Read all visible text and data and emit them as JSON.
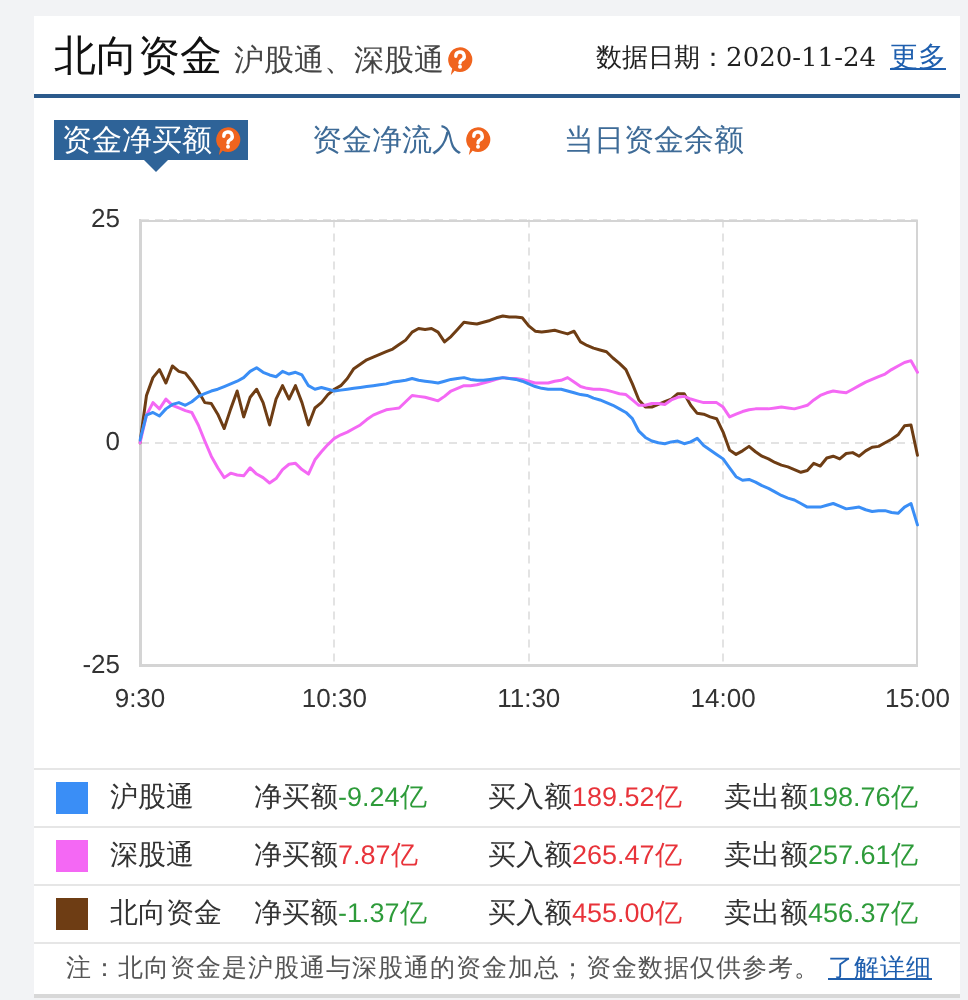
{
  "chart_data": {
    "type": "line",
    "title": "北向资金",
    "subtitle": "沪股通、深股通",
    "annotations": [
      "数据日期：2020-11-24",
      "更多",
      "资金净买额",
      "资金净流入",
      "当日资金余额",
      "净买额",
      "-9.24亿",
      "买入额",
      "189.52亿",
      "卖出额",
      "198.76亿",
      "净买额",
      "7.87亿",
      "买入额",
      "265.47亿",
      "卖出额",
      "257.61亿",
      "净买额",
      "-1.37亿",
      "买入额",
      "455.00亿",
      "卖出额",
      "456.37亿",
      "注：北向资金是沪股通与深股通的资金加总；资金数据仅供参考。",
      "了解详细"
    ],
    "categories": [
      "9:30",
      null,
      null,
      null,
      null,
      null,
      null,
      null,
      null,
      null,
      null,
      null,
      null,
      null,
      null,
      null,
      null,
      null,
      null,
      null,
      null,
      null,
      null,
      null,
      null,
      null,
      null,
      null,
      null,
      null,
      "10:30",
      null,
      null,
      null,
      null,
      null,
      null,
      null,
      null,
      null,
      null,
      null,
      null,
      null,
      null,
      null,
      null,
      null,
      null,
      null,
      null,
      null,
      null,
      null,
      null,
      null,
      null,
      null,
      null,
      null,
      "11:30",
      null,
      null,
      null,
      null,
      null,
      null,
      null,
      null,
      null,
      null,
      null,
      null,
      null,
      null,
      null,
      null,
      null,
      null,
      null,
      null,
      null,
      null,
      null,
      null,
      null,
      null,
      null,
      null,
      null,
      "14:00",
      null,
      null,
      null,
      null,
      null,
      null,
      null,
      null,
      null,
      null,
      null,
      null,
      null,
      null,
      null,
      null,
      null,
      null,
      null,
      null,
      null,
      null,
      null,
      null,
      null,
      null,
      null,
      null,
      null,
      "15:00"
    ],
    "ylim": [
      -25,
      25
    ],
    "yticks": [
      -25,
      0,
      25
    ],
    "grid": true,
    "legend": "bottom",
    "marker": "none",
    "line_style": "solid",
    "series": [
      {
        "name": "沪股通",
        "color": "#3a8ef6",
        "values": [
          0.3,
          3.1,
          3.4,
          3.0,
          3.8,
          4.3,
          4.5,
          4.2,
          4.6,
          5.2,
          5.5,
          5.8,
          6.0,
          6.3,
          6.6,
          6.9,
          7.3,
          8.0,
          8.4,
          7.9,
          7.6,
          7.4,
          8.0,
          7.7,
          7.9,
          7.6,
          6.4,
          6.0,
          6.2,
          6.0,
          5.8,
          5.9,
          6.0,
          6.1,
          6.2,
          6.3,
          6.4,
          6.5,
          6.6,
          6.8,
          6.9,
          7.0,
          7.2,
          7.0,
          6.9,
          6.8,
          6.7,
          6.9,
          7.1,
          7.2,
          7.3,
          7.1,
          7.0,
          7.0,
          7.1,
          7.2,
          7.3,
          7.2,
          7.1,
          6.9,
          6.6,
          6.3,
          6.1,
          6.0,
          6.0,
          6.0,
          5.8,
          5.6,
          5.4,
          5.3,
          5.0,
          4.8,
          4.5,
          4.2,
          3.8,
          3.4,
          2.7,
          1.3,
          0.6,
          0.2,
          0.0,
          -0.1,
          0.1,
          0.2,
          -0.1,
          0.1,
          0.5,
          -0.3,
          -0.8,
          -1.3,
          -1.8,
          -2.8,
          -3.8,
          -4.2,
          -4.1,
          -4.4,
          -4.8,
          -5.1,
          -5.5,
          -5.9,
          -6.2,
          -6.4,
          -6.8,
          -7.2,
          -7.2,
          -7.2,
          -7.0,
          -6.8,
          -7.1,
          -7.4,
          -7.3,
          -7.2,
          -7.5,
          -7.7,
          -7.6,
          -7.6,
          -7.8,
          -7.9,
          -7.2,
          -6.8,
          -9.2
        ]
      },
      {
        "name": "深股通",
        "color": "#f468f4",
        "values": [
          0,
          3.1,
          4.5,
          3.8,
          4.9,
          4.2,
          3.9,
          3.6,
          3.4,
          2.0,
          0.2,
          -1.5,
          -2.8,
          -3.9,
          -3.4,
          -3.6,
          -3.7,
          -2.8,
          -3.5,
          -3.9,
          -4.5,
          -4.0,
          -3.0,
          -2.4,
          -2.3,
          -3.0,
          -3.5,
          -1.9,
          -1.0,
          -0.2,
          0.5,
          0.9,
          1.2,
          1.6,
          2.0,
          2.6,
          3.1,
          3.4,
          3.7,
          3.8,
          3.9,
          4.6,
          5.3,
          5.2,
          5.1,
          4.9,
          4.7,
          5.2,
          5.8,
          6.1,
          6.4,
          6.4,
          6.5,
          6.7,
          6.9,
          7.1,
          7.3,
          7.2,
          7.2,
          7.1,
          6.9,
          6.7,
          6.7,
          6.7,
          6.9,
          7.0,
          7.3,
          6.8,
          6.3,
          6.1,
          6.0,
          6.0,
          5.9,
          5.7,
          5.5,
          5.4,
          4.8,
          4.2,
          4.2,
          4.4,
          4.4,
          4.3,
          4.8,
          5.1,
          5.2,
          4.9,
          4.7,
          4.5,
          4.5,
          4.5,
          4.0,
          2.9,
          3.2,
          3.5,
          3.7,
          3.8,
          3.8,
          3.8,
          3.9,
          4.0,
          3.9,
          3.8,
          4.0,
          4.2,
          4.8,
          5.3,
          5.6,
          5.8,
          5.7,
          5.6,
          6.0,
          6.4,
          6.8,
          7.1,
          7.4,
          7.7,
          8.2,
          8.6,
          9.0,
          9.2,
          7.9
        ]
      },
      {
        "name": "北向资金",
        "color": "#6e3d14",
        "values": [
          0,
          5.3,
          7.3,
          8.2,
          6.7,
          8.6,
          8.0,
          7.8,
          6.9,
          5.8,
          4.5,
          4.4,
          3.2,
          1.6,
          3.8,
          5.8,
          2.9,
          5.1,
          6.0,
          4.5,
          2.0,
          4.9,
          6.4,
          4.9,
          6.4,
          4.5,
          2.0,
          3.9,
          4.5,
          5.4,
          6.0,
          6.4,
          7.2,
          8.3,
          8.8,
          9.3,
          9.6,
          9.9,
          10.2,
          10.5,
          11.0,
          11.5,
          12.4,
          12.8,
          12.7,
          12.8,
          12.4,
          11.3,
          11.9,
          12.7,
          13.5,
          13.4,
          13.3,
          13.5,
          13.7,
          14.0,
          14.2,
          14.1,
          14.1,
          14.0,
          13.1,
          12.5,
          12.4,
          12.5,
          12.6,
          12.4,
          12.2,
          12.5,
          11.3,
          10.9,
          10.6,
          10.4,
          10.2,
          9.5,
          8.9,
          8.2,
          6.6,
          4.8,
          4.0,
          4.0,
          4.3,
          4.6,
          4.9,
          5.5,
          5.5,
          4.2,
          3.3,
          3.2,
          2.9,
          2.7,
          1.2,
          -0.8,
          -1.3,
          -0.9,
          -0.4,
          -1.0,
          -1.5,
          -1.8,
          -2.2,
          -2.5,
          -2.7,
          -3.0,
          -3.3,
          -3.1,
          -2.3,
          -2.6,
          -1.7,
          -1.5,
          -1.8,
          -1.2,
          -1.1,
          -1.5,
          -0.9,
          -0.5,
          -0.4,
          0.0,
          0.4,
          0.9,
          1.9,
          2.0,
          -1.4
        ]
      }
    ]
  }
}
